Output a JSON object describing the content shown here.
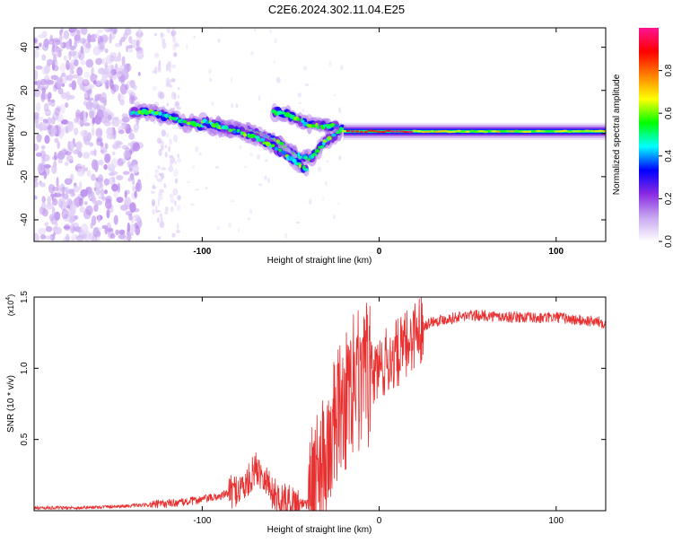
{
  "figure": {
    "title": "C2E6.2024.302.11.04.E25"
  },
  "chart_data": [
    {
      "type": "heatmap",
      "xlabel": "Height of straight line (km)",
      "ylabel": "Frequency (Hz)",
      "xlim": [
        -195,
        128
      ],
      "ylim": [
        -50,
        49
      ],
      "xticks": [
        -100,
        0,
        100
      ],
      "yticks": [
        -40,
        -20,
        0,
        20,
        40
      ],
      "colorbar": {
        "label": "Normalized spectral amplitude",
        "range": [
          0,
          1
        ],
        "ticks": [
          0.0,
          0.2,
          0.4,
          0.6,
          0.8
        ],
        "colors": [
          "#ffffff",
          "#c8a8f0",
          "#8a2be2",
          "#0000ff",
          "#00ffff",
          "#00ff00",
          "#ffff00",
          "#ff8000",
          "#ff0000",
          "#ff1493"
        ]
      },
      "features": {
        "noise_region_x": [
          -195,
          -135
        ],
        "faint_column_x": [
          -128,
          -113
        ],
        "signal_band": [
          [
            -140,
            10
          ],
          [
            -130,
            10
          ],
          [
            -120,
            8
          ],
          [
            -110,
            5
          ],
          [
            -100,
            4
          ],
          [
            -90,
            3
          ],
          [
            -80,
            2
          ],
          [
            -70,
            0
          ],
          [
            -60,
            -3
          ],
          [
            -50,
            -9
          ],
          [
            -40,
            -12
          ],
          [
            -30,
            -3
          ],
          [
            -20,
            3
          ],
          [
            -10,
            1
          ],
          [
            0,
            1
          ],
          [
            20,
            1
          ],
          [
            60,
            1
          ],
          [
            100,
            1
          ],
          [
            128,
            1
          ]
        ],
        "lower_branch": [
          [
            -100,
            6
          ],
          [
            -90,
            3
          ],
          [
            -80,
            1
          ],
          [
            -70,
            -2
          ],
          [
            -60,
            -6
          ],
          [
            -50,
            -12
          ],
          [
            -42,
            -17
          ]
        ],
        "upper_branch": [
          [
            -60,
            10
          ],
          [
            -50,
            8
          ],
          [
            -40,
            4
          ],
          [
            -32,
            3
          ],
          [
            -25,
            4
          ]
        ],
        "peak_segment_x": [
          -18,
          18
        ]
      }
    },
    {
      "type": "line",
      "xlabel": "Height of straight line (km)",
      "ylabel": "SNR (10 * v/v)",
      "multiplier": "(x10",
      "multiplier_exp": "4",
      "multiplier_close": ")",
      "xlim": [
        -195,
        128
      ],
      "ylim": [
        0,
        1.5
      ],
      "xticks": [
        -100,
        0,
        100
      ],
      "yticks": [
        0.5,
        1.0,
        1.5
      ],
      "line_color": "#e83030",
      "series": [
        {
          "name": "SNR",
          "x": [
            -195,
            -170,
            -150,
            -130,
            -120,
            -110,
            -100,
            -90,
            -80,
            -75,
            -70,
            -65,
            -60,
            -55,
            -50,
            -45,
            -40,
            -35,
            -30,
            -25,
            -20,
            -15,
            -10,
            -5,
            0,
            5,
            10,
            15,
            20,
            25,
            30,
            40,
            50,
            60,
            70,
            80,
            90,
            100,
            110,
            120,
            128
          ],
          "values": [
            0.02,
            0.02,
            0.03,
            0.04,
            0.05,
            0.06,
            0.08,
            0.1,
            0.15,
            0.18,
            0.3,
            0.25,
            0.12,
            0.08,
            0.06,
            0.05,
            0.06,
            0.18,
            0.35,
            0.6,
            0.75,
            0.8,
            0.85,
            0.95,
            1.0,
            1.05,
            1.1,
            1.15,
            1.25,
            1.3,
            1.33,
            1.35,
            1.37,
            1.37,
            1.36,
            1.36,
            1.35,
            1.36,
            1.34,
            1.33,
            1.32
          ]
        }
      ]
    }
  ]
}
